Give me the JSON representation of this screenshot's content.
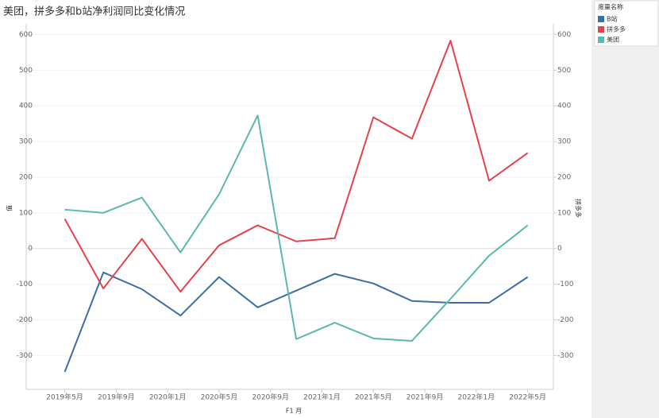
{
  "chart_data": {
    "type": "line",
    "title": "美团，拼多多和b站净利润同比变化情况",
    "x_label": "F1 月",
    "y_label": "值",
    "y2_label": "拼多多",
    "legend_title": "度量名称",
    "x": [
      "2019-05",
      "2019-08",
      "2019-11",
      "2020-02",
      "2020-05",
      "2020-08",
      "2020-11",
      "2021-02",
      "2021-05",
      "2021-08",
      "2021-11",
      "2022-02",
      "2022-05"
    ],
    "xlim": [
      "2019-02",
      "2022-07"
    ],
    "xticks": [
      {
        "value": "2019-05",
        "label": "2019年5月"
      },
      {
        "value": "2019-09",
        "label": "2019年9月"
      },
      {
        "value": "2020-01",
        "label": "2020年1月"
      },
      {
        "value": "2020-05",
        "label": "2020年5月"
      },
      {
        "value": "2020-09",
        "label": "2020年9月"
      },
      {
        "value": "2021-01",
        "label": "2021年1月"
      },
      {
        "value": "2021-05",
        "label": "2021年5月"
      },
      {
        "value": "2021-09",
        "label": "2021年9月"
      },
      {
        "value": "2022-01",
        "label": "2022年1月"
      },
      {
        "value": "2022-05",
        "label": "2022年5月"
      }
    ],
    "ylim": [
      -395,
      630
    ],
    "yticks": [
      -300,
      -200,
      -100,
      0,
      100,
      200,
      300,
      400,
      500,
      600
    ],
    "y2lim": [
      -395,
      630
    ],
    "y2ticks": [
      -300,
      -200,
      -100,
      0,
      100,
      200,
      300,
      400,
      500,
      600
    ],
    "grid": true,
    "series": [
      {
        "name": "B站",
        "color": "#3a6ea5",
        "values": [
          -346,
          -67,
          -114,
          -188,
          -80,
          -165,
          -118,
          -71,
          -98,
          -147,
          -152,
          -152,
          -80
        ]
      },
      {
        "name": "拼多多",
        "color": "#e8414e",
        "axis": "y2",
        "values": [
          83,
          -112,
          27,
          -121,
          9,
          65,
          20,
          29,
          368,
          308,
          583,
          190,
          268
        ]
      },
      {
        "name": "美团",
        "color": "#5bb8b0",
        "values": [
          109,
          100,
          143,
          -11,
          152,
          373,
          -254,
          -208,
          -252,
          -259,
          -141,
          -20,
          65
        ]
      }
    ]
  }
}
